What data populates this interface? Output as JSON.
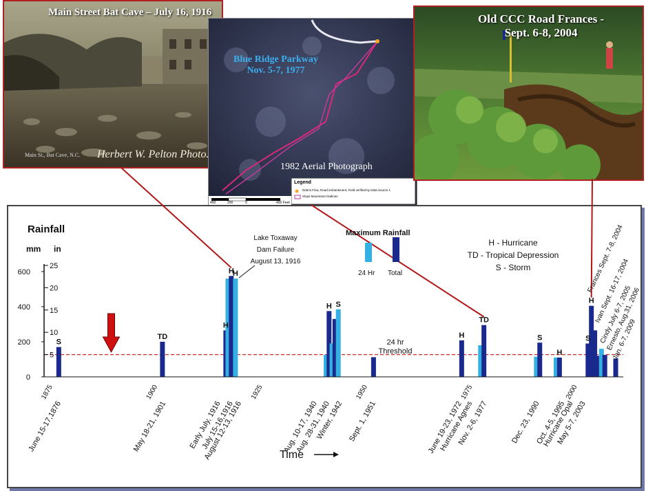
{
  "photos": {
    "bat_cave": {
      "title": "Main Street Bat Cave – July 16, 1916",
      "credit": "Herbert W. Pelton  Photo.",
      "caption_small": "Main St., Bat Cave, N.C."
    },
    "parkway": {
      "title_line1": "Blue Ridge Parkway",
      "title_line2": "Nov. 5-7, 1977",
      "subtitle": "1982 Aerial Photograph",
      "legend_title": "Legend",
      "legend_item1": "Debris Flow, Road embankment, Field verified by Data Source 1",
      "legend_item2": "Slope Movement Outlines",
      "scale_labels": [
        "400",
        "200",
        "0",
        "400 Feet"
      ]
    },
    "ccc_road": {
      "title_line1": "Old CCC Road  Frances -",
      "title_line2": "Sept. 6-8, 2004"
    }
  },
  "colors": {
    "total": "#1a2a8c",
    "h24": "#35b0e2",
    "threshold": "#d62828",
    "arrow": "#d01010",
    "connector": "#b01818",
    "frame": "#b02020"
  },
  "chart_data": {
    "type": "bar",
    "title": "Rainfall",
    "unit_labels": [
      "mm",
      "in"
    ],
    "ylim_mm": [
      0,
      635
    ],
    "yticks_mm": [
      0,
      200,
      400,
      600
    ],
    "yticks_in": [
      5,
      10,
      15,
      20,
      25
    ],
    "xlim_year": [
      1873,
      2011
    ],
    "xticks_years": [
      1875,
      1900,
      1925,
      1950,
      1975,
      2000
    ],
    "xlabel": "Time",
    "threshold": {
      "value_in": 5,
      "label_line1": "24 hr",
      "label_line2": "Threshold"
    },
    "legend": {
      "title": "Maximum Rainfall",
      "items": [
        {
          "name": "24 Hr",
          "color_key": "h24"
        },
        {
          "name": "Total",
          "color_key": "total"
        }
      ]
    },
    "storm_key": [
      "H  -  Hurricane",
      "TD  -  Tropical Depression",
      "S  -  Storm"
    ],
    "annotation": {
      "line1": "Lake Toxaway",
      "line2": "Dam Failure",
      "line3": "August 13, 1916"
    },
    "arrow_year": 1889,
    "bars": [
      {
        "year": 1876.5,
        "series": "total",
        "mm": 170,
        "code": "S"
      },
      {
        "year": 1901.2,
        "series": "total",
        "mm": 200,
        "code": "TD"
      },
      {
        "year": 1916.3,
        "series": "total",
        "mm": 265,
        "code": "H"
      },
      {
        "year": 1916.8,
        "series": "h24",
        "mm": 560
      },
      {
        "year": 1917.6,
        "series": "total",
        "mm": 575,
        "code": "H"
      },
      {
        "year": 1918.6,
        "series": "h24",
        "mm": 560,
        "code": "H"
      },
      {
        "year": 1940.2,
        "series": "h24",
        "mm": 125
      },
      {
        "year": 1940.9,
        "series": "total",
        "mm": 375,
        "code": "H"
      },
      {
        "year": 1941.6,
        "series": "h24",
        "mm": 190
      },
      {
        "year": 1942.3,
        "series": "total",
        "mm": 330
      },
      {
        "year": 1943.1,
        "series": "h24",
        "mm": 385,
        "code": "S"
      },
      {
        "year": 1951.5,
        "series": "total",
        "mm": 112
      },
      {
        "year": 1972.5,
        "series": "total",
        "mm": 208,
        "code": "H"
      },
      {
        "year": 1977.0,
        "series": "h24",
        "mm": 180
      },
      {
        "year": 1977.8,
        "series": "total",
        "mm": 295,
        "code": "TD"
      },
      {
        "year": 1990.3,
        "series": "h24",
        "mm": 115
      },
      {
        "year": 1991.1,
        "series": "total",
        "mm": 195,
        "code": "S"
      },
      {
        "year": 1995.0,
        "series": "h24",
        "mm": 110
      },
      {
        "year": 1995.8,
        "series": "total",
        "mm": 110,
        "code": "H"
      },
      {
        "year": 2002.6,
        "series": "total",
        "mm": 190,
        "code": "S"
      },
      {
        "year": 2003.4,
        "series": "total",
        "mm": 405,
        "code": "H"
      },
      {
        "year": 2004.2,
        "series": "total",
        "mm": 265
      },
      {
        "year": 2005.0,
        "series": "total",
        "mm": 120
      },
      {
        "year": 2005.8,
        "series": "h24",
        "mm": 160
      },
      {
        "year": 2006.6,
        "series": "total",
        "mm": 125
      },
      {
        "year": 2009.2,
        "series": "total",
        "mm": 105
      }
    ],
    "events": [
      {
        "year": 1877,
        "label": "June 15-17,1876"
      },
      {
        "year": 1902,
        "label": "May 18-21, 1901"
      },
      {
        "year": 1915,
        "label": "Early July, 1916"
      },
      {
        "year": 1918,
        "label": "July 15-16,1916"
      },
      {
        "year": 1920,
        "label": "August 12-13, 1916"
      },
      {
        "year": 1938,
        "label": "Aug. 10-17, 1940"
      },
      {
        "year": 1941,
        "label": "Aug. 28-31, 1940"
      },
      {
        "year": 1944,
        "label": "Winter, 1942"
      },
      {
        "year": 1952,
        "label": "Sept. 1, 1951"
      },
      {
        "year": 1972.5,
        "label": "June 19-23, 1972"
      },
      {
        "year": 1975,
        "label": "Hurricane Agnes"
      },
      {
        "year": 1978.5,
        "label": "Nov. 2-6, 1977"
      },
      {
        "year": 1991,
        "label": "Dec. 23, 1990"
      },
      {
        "year": 1997,
        "label": "Oct. 4-5, 1995"
      },
      {
        "year": 1999,
        "label": "Hurricane Opal"
      },
      {
        "year": 2002,
        "label": "May 5-7, 2003"
      }
    ],
    "event_labels_up": [
      {
        "year": 2004,
        "label": "Frances Sept. 7-8, 2004"
      },
      {
        "year": 2006,
        "label": "Ivan Sept. 16-17, 2004"
      },
      {
        "year": 2008,
        "label": "Cindy July 6-7, 2005"
      },
      {
        "year": 2009.5,
        "label": "Ernesto, Aug.31, 2006"
      },
      {
        "year": 2011,
        "label": "Jan. 6-7, 2009"
      }
    ]
  }
}
